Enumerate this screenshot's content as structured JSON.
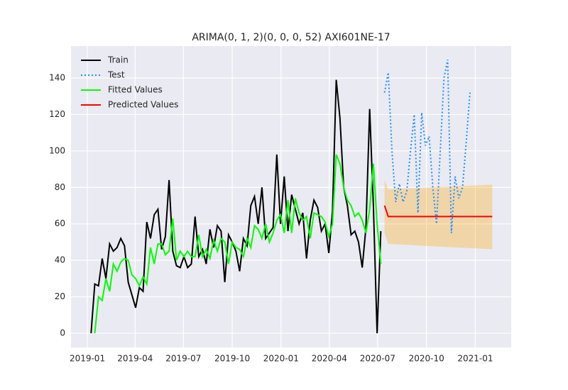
{
  "chart_data": {
    "type": "line",
    "title": "ARIMA(0, 1, 2)(0, 0, 0, 52) AXI601NE-17",
    "xlim": [
      -4.4,
      114.1
    ],
    "xticks": [
      {
        "value": 0,
        "label": "2019-01"
      },
      {
        "value": 12.86,
        "label": "2019-04"
      },
      {
        "value": 25.86,
        "label": "2019-07"
      },
      {
        "value": 39,
        "label": "2019-10"
      },
      {
        "value": 52.14,
        "label": "2020-01"
      },
      {
        "value": 65.14,
        "label": "2020-04"
      },
      {
        "value": 78.14,
        "label": "2020-07"
      },
      {
        "value": 91.29,
        "label": "2020-10"
      },
      {
        "value": 104.43,
        "label": "2021-01"
      }
    ],
    "ylim": [
      -7.8,
      157.5
    ],
    "yticks": [
      0,
      20,
      40,
      60,
      80,
      100,
      120,
      140
    ],
    "grid": true,
    "legend": "upper left",
    "series": [
      {
        "name": "Train",
        "color": "#000000",
        "style": "solid",
        "x": [
          1,
          2,
          3,
          4,
          5,
          6,
          7,
          8,
          9,
          10,
          11,
          12,
          13,
          14,
          15,
          16,
          17,
          18,
          19,
          20,
          21,
          22,
          23,
          24,
          25,
          26,
          27,
          28,
          29,
          30,
          31,
          32,
          33,
          34,
          35,
          36,
          37,
          38,
          39,
          40,
          41,
          42,
          43,
          44,
          45,
          46,
          47,
          48,
          49,
          50,
          51,
          52,
          53,
          54,
          55,
          56,
          57,
          58,
          59,
          60,
          61,
          62,
          63,
          64,
          65,
          66,
          67,
          68,
          69,
          70,
          71,
          72,
          73,
          74,
          75,
          76,
          77,
          78,
          79
        ],
        "values": [
          0,
          27,
          26,
          41,
          30,
          49,
          45,
          47,
          52,
          48,
          28,
          21,
          14,
          25,
          23,
          61,
          52,
          65,
          68,
          46,
          53,
          84,
          45,
          37,
          36,
          42,
          36,
          38,
          64,
          42,
          46,
          38,
          57,
          47,
          59,
          56,
          28,
          54,
          50,
          45,
          34,
          52,
          48,
          70,
          75,
          60,
          80,
          52,
          55,
          58,
          98,
          60,
          86,
          56,
          76,
          68,
          60,
          66,
          41,
          62,
          73,
          69,
          56,
          60,
          44,
          67,
          139,
          118,
          80,
          70,
          54,
          56,
          50,
          36,
          58,
          123,
          70,
          0,
          56
        ]
      },
      {
        "name": "Test",
        "color": "#1e8fff",
        "style": "dotted",
        "x": [
          80,
          81,
          82,
          83,
          84,
          85,
          86,
          87,
          88,
          89,
          90,
          91,
          92,
          93,
          94,
          95,
          96,
          97,
          98,
          99,
          100,
          101,
          102,
          103
        ],
        "values": [
          132,
          143,
          100,
          72,
          82,
          72,
          78,
          100,
          120,
          66,
          121,
          103,
          108,
          80,
          60,
          100,
          140,
          150,
          55,
          86,
          74,
          80,
          105,
          132
        ]
      },
      {
        "name": "Fitted Values",
        "color": "#00ff00",
        "style": "solid",
        "x": [
          2,
          3,
          4,
          5,
          6,
          7,
          8,
          9,
          10,
          11,
          12,
          13,
          14,
          15,
          16,
          17,
          18,
          19,
          20,
          21,
          22,
          23,
          24,
          25,
          26,
          27,
          28,
          29,
          30,
          31,
          32,
          33,
          34,
          35,
          36,
          37,
          38,
          39,
          40,
          41,
          42,
          43,
          44,
          45,
          46,
          47,
          48,
          49,
          50,
          51,
          52,
          53,
          54,
          55,
          56,
          57,
          58,
          59,
          60,
          61,
          62,
          63,
          64,
          65,
          66,
          67,
          68,
          69,
          70,
          71,
          72,
          73,
          74,
          75,
          76,
          77,
          78,
          79
        ],
        "values": [
          0,
          20,
          18,
          30,
          23,
          38,
          34,
          39,
          41,
          40,
          32,
          30,
          26,
          31,
          27,
          47,
          38,
          49,
          49,
          43,
          45,
          63,
          40,
          45,
          42,
          45,
          42,
          42,
          54,
          42,
          46,
          41,
          51,
          45,
          52,
          50,
          38,
          50,
          47,
          46,
          42,
          52,
          47,
          59,
          57,
          52,
          60,
          50,
          55,
          62,
          65,
          55,
          73,
          55,
          74,
          66,
          62,
          64,
          52,
          66,
          65,
          64,
          61,
          53,
          60,
          98,
          93,
          80,
          73,
          70,
          64,
          66,
          62,
          55,
          68,
          93,
          60,
          38
        ]
      },
      {
        "name": "Predicted Values",
        "color": "#ff0000",
        "style": "solid",
        "x": [
          80,
          81,
          82,
          83,
          84,
          85,
          86,
          87,
          88,
          89,
          90,
          91,
          92,
          93,
          94,
          95,
          96,
          97,
          98,
          99,
          100,
          101,
          102,
          103,
          104,
          105,
          106,
          107,
          108,
          109
        ],
        "values": [
          70,
          64,
          64,
          64,
          64,
          64,
          64,
          64,
          64,
          64,
          64,
          64,
          64,
          64,
          64,
          64,
          64,
          64,
          64,
          64,
          64,
          64,
          64,
          64,
          64,
          64,
          64,
          64,
          64,
          64
        ]
      }
    ],
    "band": {
      "color": "#ffa500",
      "opacity": 0.3,
      "x": [
        80,
        81,
        82,
        83,
        84,
        85,
        86,
        87,
        88,
        89,
        90,
        91,
        92,
        93,
        94,
        95,
        96,
        97,
        98,
        99,
        100,
        101,
        102,
        103,
        104,
        105,
        106,
        107,
        108,
        109
      ],
      "lower": [
        55,
        49,
        48.9,
        48.8,
        48.7,
        48.6,
        48.5,
        48.4,
        48.3,
        48.1,
        48,
        47.9,
        47.8,
        47.7,
        47.6,
        47.5,
        47.4,
        47.3,
        47.2,
        47.1,
        47,
        46.9,
        46.8,
        46.7,
        46.6,
        46.5,
        46.4,
        46.3,
        46.2,
        46
      ],
      "upper": [
        84,
        79,
        79.1,
        79.2,
        79.3,
        79.4,
        79.4,
        79.5,
        79.6,
        79.7,
        79.8,
        79.9,
        80,
        80.1,
        80.2,
        80.3,
        80.3,
        80.4,
        80.5,
        80.6,
        80.7,
        80.8,
        80.9,
        81,
        81,
        81.1,
        81.2,
        81.3,
        81.4,
        81.5
      ]
    }
  }
}
